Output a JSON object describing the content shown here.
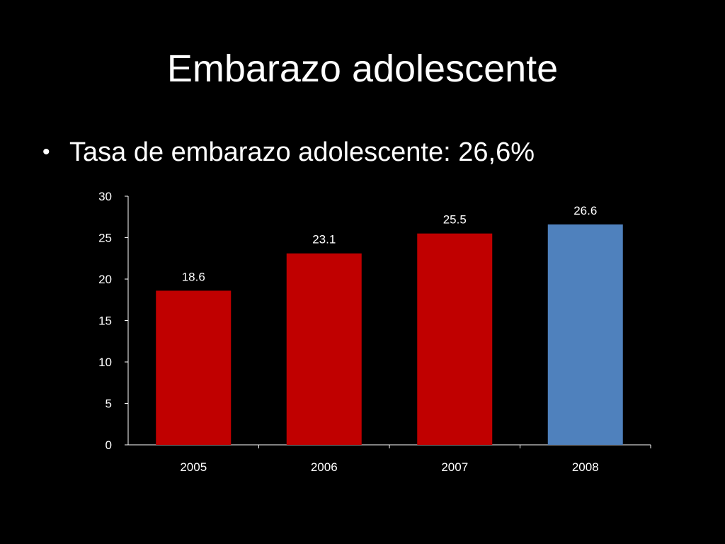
{
  "slide": {
    "title": "Embarazo adolescente",
    "bullet": "Tasa de embarazo adolescente: 26,6%"
  },
  "colors": {
    "background": "#000000",
    "text": "#ffffff",
    "bar_default": "#c00000",
    "bar_highlight": "#4f81bd"
  },
  "chart_data": {
    "type": "bar",
    "categories": [
      "2005",
      "2006",
      "2007",
      "2008"
    ],
    "values": [
      18.6,
      23.1,
      25.5,
      26.6
    ],
    "data_labels": [
      "18.6",
      "23.1",
      "25.5",
      "26.6"
    ],
    "bar_colors": [
      "#c00000",
      "#c00000",
      "#c00000",
      "#4f81bd"
    ],
    "ylim": [
      0,
      30
    ],
    "yticks": [
      "0",
      "5",
      "10",
      "15",
      "20",
      "25",
      "30"
    ],
    "ytick_values": [
      0,
      5,
      10,
      15,
      20,
      25,
      30
    ],
    "grid": false,
    "legend": "none",
    "title": "",
    "xlabel": "",
    "ylabel": ""
  }
}
